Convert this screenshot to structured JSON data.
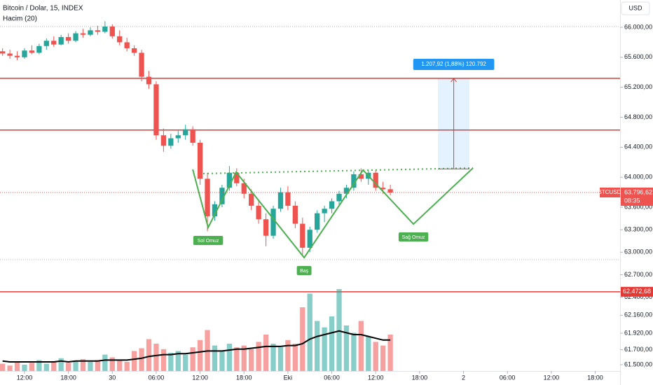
{
  "chart_data": {
    "type": "candlestick",
    "title": "Bitcoin / Dolar, 15, INDEX",
    "indicator": "Hacim (20)",
    "currency": "USD",
    "up_color": "#26a69a",
    "down_color": "#ef5350",
    "x": [
      9,
      10,
      11,
      12,
      13,
      14,
      15,
      16,
      17,
      18,
      19,
      20,
      21,
      22,
      23,
      24,
      25,
      26,
      27,
      28,
      29,
      30,
      31,
      32,
      33,
      34,
      35,
      36,
      37,
      38,
      39,
      40,
      41,
      42,
      43,
      44,
      45,
      46,
      47,
      48,
      49,
      50,
      51,
      52,
      53,
      54,
      55,
      56,
      57,
      58,
      59,
      60,
      61,
      62
    ],
    "open": [
      65680,
      65650,
      65620,
      65600,
      65690,
      65660,
      65750,
      65820,
      65770,
      65870,
      65820,
      65920,
      65900,
      65960,
      65940,
      66010,
      65880,
      65800,
      65720,
      65660,
      65340,
      65240,
      64560,
      64420,
      64520,
      64560,
      64640,
      64460,
      63980,
      63480,
      63640,
      63860,
      64060,
      63920,
      63780,
      63620,
      63440,
      63220,
      63580,
      63800,
      63620,
      63380,
      63060,
      63300,
      63520,
      63580,
      63680,
      63780,
      63860,
      64040,
      63980,
      64060,
      63860,
      63840
    ],
    "high": [
      65720,
      65700,
      65680,
      65720,
      65760,
      65780,
      65850,
      65880,
      65900,
      65920,
      65950,
      65980,
      66000,
      66020,
      66080,
      66040,
      65960,
      65860,
      65760,
      65700,
      65420,
      65280,
      64650,
      64580,
      64620,
      64700,
      64680,
      64500,
      64060,
      63680,
      63900,
      64150,
      64120,
      63980,
      63840,
      63700,
      63520,
      63620,
      63860,
      63880,
      63680,
      63460,
      63340,
      63560,
      63620,
      63720,
      63820,
      63900,
      64080,
      64120,
      64100,
      64100,
      63940,
      63900
    ],
    "low": [
      65620,
      65580,
      65560,
      65580,
      65640,
      65640,
      65700,
      65740,
      65760,
      65780,
      65800,
      65860,
      65880,
      65900,
      65920,
      65850,
      65760,
      65680,
      65620,
      65280,
      65180,
      64500,
      64340,
      64380,
      64460,
      64500,
      64420,
      63900,
      63280,
      63420,
      63600,
      63820,
      63880,
      63720,
      63560,
      63380,
      63080,
      63180,
      63540,
      63560,
      63320,
      62960,
      63000,
      63260,
      63400,
      63520,
      63620,
      63720,
      63820,
      63940,
      63900,
      63820,
      63780,
      63760
    ],
    "close": [
      65650,
      65620,
      65600,
      65690,
      65660,
      65750,
      65820,
      65770,
      65870,
      65820,
      65920,
      65900,
      65960,
      65940,
      66010,
      65880,
      65800,
      65720,
      65660,
      65340,
      65240,
      64560,
      64420,
      64520,
      64560,
      64640,
      64460,
      63980,
      63480,
      63640,
      63860,
      64060,
      63920,
      63780,
      63620,
      63440,
      63220,
      63580,
      63800,
      63620,
      63380,
      63060,
      63300,
      63520,
      63580,
      63680,
      63780,
      63860,
      64040,
      63980,
      64060,
      63860,
      63840,
      63796.62
    ],
    "volume": [
      8,
      6,
      10,
      7,
      9,
      12,
      8,
      10,
      14,
      9,
      11,
      13,
      10,
      12,
      18,
      15,
      12,
      10,
      22,
      25,
      35,
      30,
      24,
      20,
      22,
      18,
      26,
      34,
      45,
      28,
      22,
      30,
      26,
      28,
      24,
      32,
      40,
      30,
      26,
      34,
      30,
      70,
      85,
      55,
      48,
      60,
      90,
      50,
      42,
      55,
      38,
      32,
      28,
      40
    ],
    "volume_ma": [
      11,
      10,
      10,
      10,
      10,
      10,
      10,
      10,
      11,
      10,
      11,
      11,
      11,
      11,
      12,
      12,
      12,
      12,
      13,
      14,
      16,
      17,
      18,
      18,
      19,
      19,
      20,
      21,
      22,
      22,
      22,
      23,
      24,
      24,
      25,
      26,
      27,
      27,
      27,
      28,
      28,
      30,
      35,
      38,
      40,
      42,
      44,
      42,
      40,
      40,
      38,
      36,
      34,
      34
    ],
    "volume_lim": [
      0,
      100
    ],
    "xlim": [
      8.65,
      93.4
    ],
    "xticks": [
      {
        "value": 12,
        "label": "12:00"
      },
      {
        "value": 18,
        "label": "18:00"
      },
      {
        "value": 24,
        "label": "30"
      },
      {
        "value": 30,
        "label": "06:00"
      },
      {
        "value": 36,
        "label": "12:00"
      },
      {
        "value": 42,
        "label": "18:00"
      },
      {
        "value": 48,
        "label": "Eki"
      },
      {
        "value": 54,
        "label": "06:00"
      },
      {
        "value": 60,
        "label": "12:00"
      },
      {
        "value": 66,
        "label": "18:00"
      },
      {
        "value": 72,
        "label": "2"
      },
      {
        "value": 78,
        "label": "06:00"
      },
      {
        "value": 84,
        "label": "12:00"
      },
      {
        "value": 90,
        "label": "18:00"
      }
    ],
    "ylim": [
      61416,
      66364
    ],
    "yticks": [
      {
        "value": 66000,
        "label": "66.000,00"
      },
      {
        "value": 65600,
        "label": "65.600,00"
      },
      {
        "value": 65200,
        "label": "65.200,00"
      },
      {
        "value": 64800,
        "label": "64.800,00"
      },
      {
        "value": 64400,
        "label": "64.400,00"
      },
      {
        "value": 64000,
        "label": "64.000,00"
      },
      {
        "value": 63600,
        "label": "63.600,00"
      },
      {
        "value": 63300,
        "label": "63.300,00"
      },
      {
        "value": 63000,
        "label": "63.000,00"
      },
      {
        "value": 62700,
        "label": "62.700,00"
      },
      {
        "value": 62400,
        "label": "62.400,00"
      },
      {
        "value": 62160,
        "label": "62.160,00"
      },
      {
        "value": 61920,
        "label": "61.920,00"
      },
      {
        "value": 61700,
        "label": "61.700,00"
      },
      {
        "value": 61500,
        "label": "61.500,00"
      }
    ],
    "levels": [
      {
        "value": 65320,
        "color": "#e53935"
      },
      {
        "value": 64630,
        "color": "#e53935"
      },
      {
        "value": 62472.68,
        "color": "#e53935",
        "label": "62.472,68"
      },
      {
        "value": 66010,
        "color": "#b0b4bc",
        "dotted": true
      },
      {
        "value": 62900,
        "color": "#b0b4bc",
        "dotted": true
      }
    ],
    "last_price": {
      "symbol": "BTCUSD",
      "value": 63796.62,
      "label": "63.796,62",
      "countdown": "08:35",
      "color": "#ef5350"
    },
    "pattern": {
      "color": "#4caf50",
      "points": [
        {
          "x": 34.99,
          "price": 64105
        },
        {
          "x": 37.1,
          "price": 63330,
          "label": "Sol Omuz"
        },
        {
          "x": 40.93,
          "price": 64067
        },
        {
          "x": 50.22,
          "price": 62928,
          "label": "Baş"
        },
        {
          "x": 58.26,
          "price": 64095
        },
        {
          "x": 65.16,
          "price": 63376,
          "label": "Sağ Omuz"
        },
        {
          "x": 73.3,
          "price": 64123
        }
      ],
      "neckline": [
        {
          "x": 36.43,
          "price": 64049
        },
        {
          "x": 73.3,
          "price": 64123
        }
      ]
    },
    "measure": {
      "x": [
        68.51,
        72.82
      ],
      "price": [
        64110,
        65318
      ],
      "label": "1.207,92 (1,88%) 120.792"
    }
  }
}
